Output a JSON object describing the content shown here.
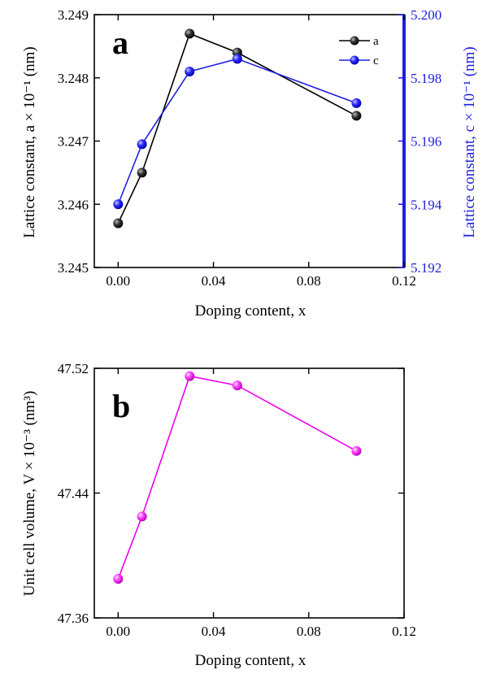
{
  "chart_data": [
    {
      "type": "line",
      "panel_label": "a",
      "xlabel": "Doping content, x",
      "ylabel": "Lattice constant, a × 10⁻¹ (nm)",
      "y2label": "Lattice constant, c × 10⁻¹ (nm)",
      "xlim": [
        -0.01,
        0.12
      ],
      "xticks": [
        "0.00",
        "0.04",
        "0.08",
        "0.12"
      ],
      "ylim": [
        3.245,
        3.249
      ],
      "yticks": [
        "3.245",
        "3.246",
        "3.247",
        "3.248",
        "3.249"
      ],
      "y2lim": [
        5.192,
        5.2
      ],
      "y2ticks": [
        "5.192",
        "5.194",
        "5.196",
        "5.198",
        "5.200"
      ],
      "grid": false,
      "legend_position": "top-right",
      "series": [
        {
          "name": "a",
          "color": "#000000",
          "axis": "left",
          "x": [
            0.0,
            0.01,
            0.03,
            0.05,
            0.1
          ],
          "y": [
            3.2457,
            3.2465,
            3.2487,
            3.2484,
            3.2474
          ]
        },
        {
          "name": "c",
          "color": "#1f1fe0",
          "axis": "right",
          "x": [
            0.0,
            0.01,
            0.03,
            0.05,
            0.1
          ],
          "y": [
            5.194,
            5.1959,
            5.1982,
            5.1986,
            5.1972
          ]
        }
      ]
    },
    {
      "type": "line",
      "panel_label": "b",
      "xlabel": "Doping content, x",
      "ylabel": "Unit cell volume, V × 10⁻³ (nm³)",
      "xlim": [
        -0.01,
        0.12
      ],
      "xticks": [
        "0.00",
        "0.04",
        "0.08",
        "0.12"
      ],
      "ylim": [
        47.36,
        47.52
      ],
      "yticks": [
        "47.36",
        "47.44",
        "47.52"
      ],
      "grid": false,
      "series": [
        {
          "color": "#ee00ee",
          "axis": "left",
          "x": [
            0.0,
            0.01,
            0.03,
            0.05,
            0.1
          ],
          "y": [
            47.385,
            47.425,
            47.515,
            47.509,
            47.467
          ]
        }
      ]
    }
  ]
}
